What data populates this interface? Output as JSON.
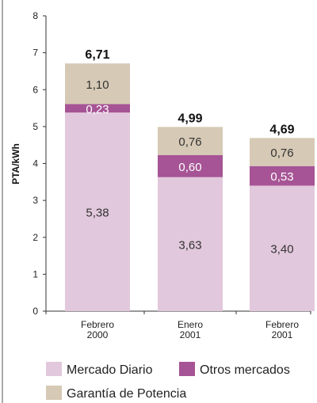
{
  "chart_data": {
    "type": "bar",
    "stacked": true,
    "ylabel": "PTA/kWh",
    "ylim": [
      0,
      8
    ],
    "yticks": [
      "0",
      "1",
      "2",
      "3",
      "4",
      "5",
      "6",
      "7",
      "8"
    ],
    "categories": [
      [
        "Febrero",
        "2000"
      ],
      [
        "Enero",
        "2001"
      ],
      [
        "Febrero",
        "2001"
      ]
    ],
    "series": [
      {
        "name": "Mercado Diario",
        "color": "#e2c8dc",
        "text_color": "#333333",
        "values": [
          5.38,
          3.63,
          3.4
        ],
        "labels": [
          "5,38",
          "3,63",
          "3,40"
        ]
      },
      {
        "name": "Otros mercados",
        "color": "#a65495",
        "text_color": "#ffffff",
        "values": [
          0.23,
          0.6,
          0.53
        ],
        "labels": [
          "0,23",
          "0,60",
          "0,53"
        ]
      },
      {
        "name": "Garantía de Potencia",
        "color": "#d6c9b5",
        "text_color": "#333333",
        "values": [
          1.1,
          0.76,
          0.76
        ],
        "labels": [
          "1,10",
          "0,76",
          "0,76"
        ]
      }
    ],
    "totals": [
      6.71,
      4.99,
      4.69
    ],
    "total_labels": [
      "6,71",
      "4,99",
      "4,69"
    ],
    "grid": false,
    "legend_position": "bottom"
  }
}
